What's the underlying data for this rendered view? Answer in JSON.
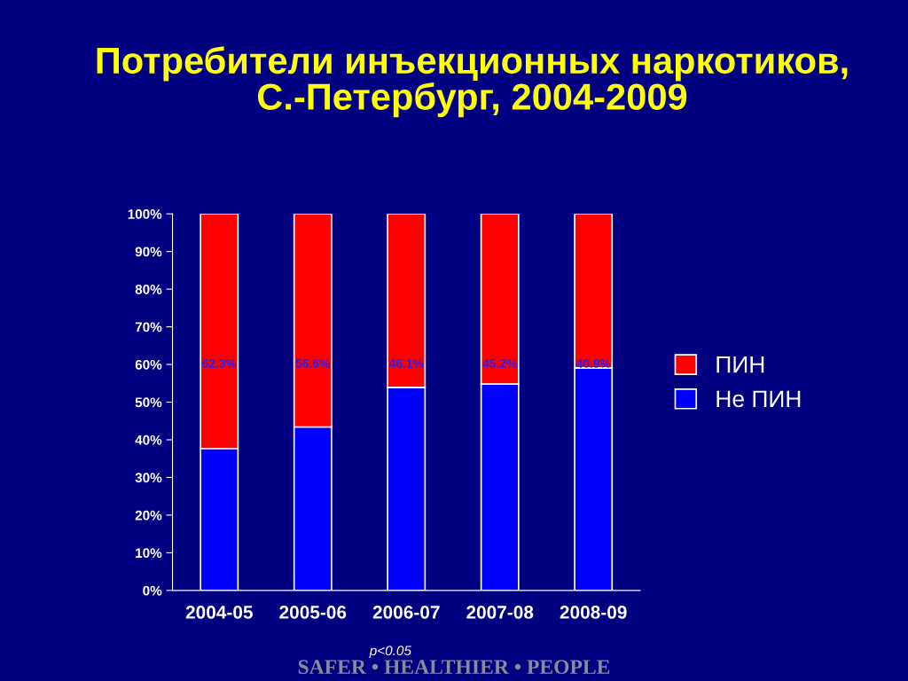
{
  "chart_data": {
    "type": "bar",
    "stacked": true,
    "title": "Потребители инъекционных наркотиков,\nС.-Петербург, 2004-2009",
    "categories": [
      "2004-05",
      "2005-06",
      "2006-07",
      "2007-08",
      "2008-09"
    ],
    "series": [
      {
        "name": "Не ПИН",
        "color": "#0000ff",
        "values": [
          37.7,
          43.4,
          53.9,
          54.8,
          59.1
        ]
      },
      {
        "name": "ПИН",
        "color": "#ff0000",
        "values": [
          62.3,
          56.6,
          46.1,
          45.2,
          40.9
        ],
        "value_labels": [
          "62.3%",
          "56.6%",
          "46.1%",
          "45.2%",
          "40.9%"
        ]
      }
    ],
    "ylim": [
      0,
      100
    ],
    "yticks": [
      {
        "value": 0,
        "label": "0%"
      },
      {
        "value": 10,
        "label": "10%"
      },
      {
        "value": 20,
        "label": "20%"
      },
      {
        "value": 30,
        "label": "30%"
      },
      {
        "value": 40,
        "label": "40%"
      },
      {
        "value": 50,
        "label": "50%"
      },
      {
        "value": 60,
        "label": "60%"
      },
      {
        "value": 70,
        "label": "70%"
      },
      {
        "value": 80,
        "label": "80%"
      },
      {
        "value": 90,
        "label": "90%"
      },
      {
        "value": 100,
        "label": "100%"
      }
    ],
    "grid": false,
    "legend": "right",
    "annotations": [
      "p<0.05",
      "SAFER • HEALTHIER • PEOPLE"
    ]
  }
}
